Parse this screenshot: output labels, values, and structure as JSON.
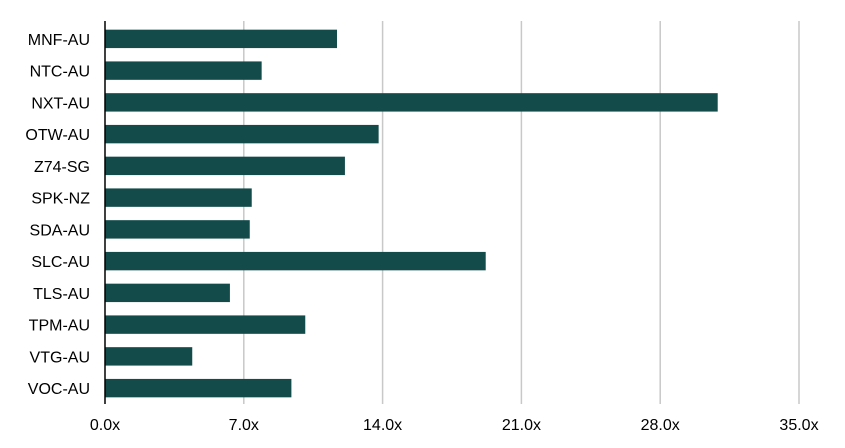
{
  "chart_data": {
    "type": "bar",
    "orientation": "horizontal",
    "title": "",
    "xlabel": "",
    "ylabel": "",
    "categories": [
      "MNF-AU",
      "NTC-AU",
      "NXT-AU",
      "OTW-AU",
      "Z74-SG",
      "SPK-NZ",
      "SDA-AU",
      "SLC-AU",
      "TLS-AU",
      "TPM-AU",
      "VTG-AU",
      "VOC-AU"
    ],
    "values": [
      11.7,
      7.9,
      30.9,
      13.8,
      12.1,
      7.4,
      7.3,
      19.2,
      6.3,
      10.1,
      4.4,
      9.4
    ],
    "xlim": [
      0,
      35
    ],
    "xticks": [
      0,
      7,
      14,
      21,
      28,
      35
    ],
    "xtick_labels": [
      "0.0x",
      "7.0x",
      "14.0x",
      "21.0x",
      "28.0x",
      "35.0x"
    ],
    "grid": "vertical",
    "legend": "none",
    "bar_color": "#134b4b"
  }
}
